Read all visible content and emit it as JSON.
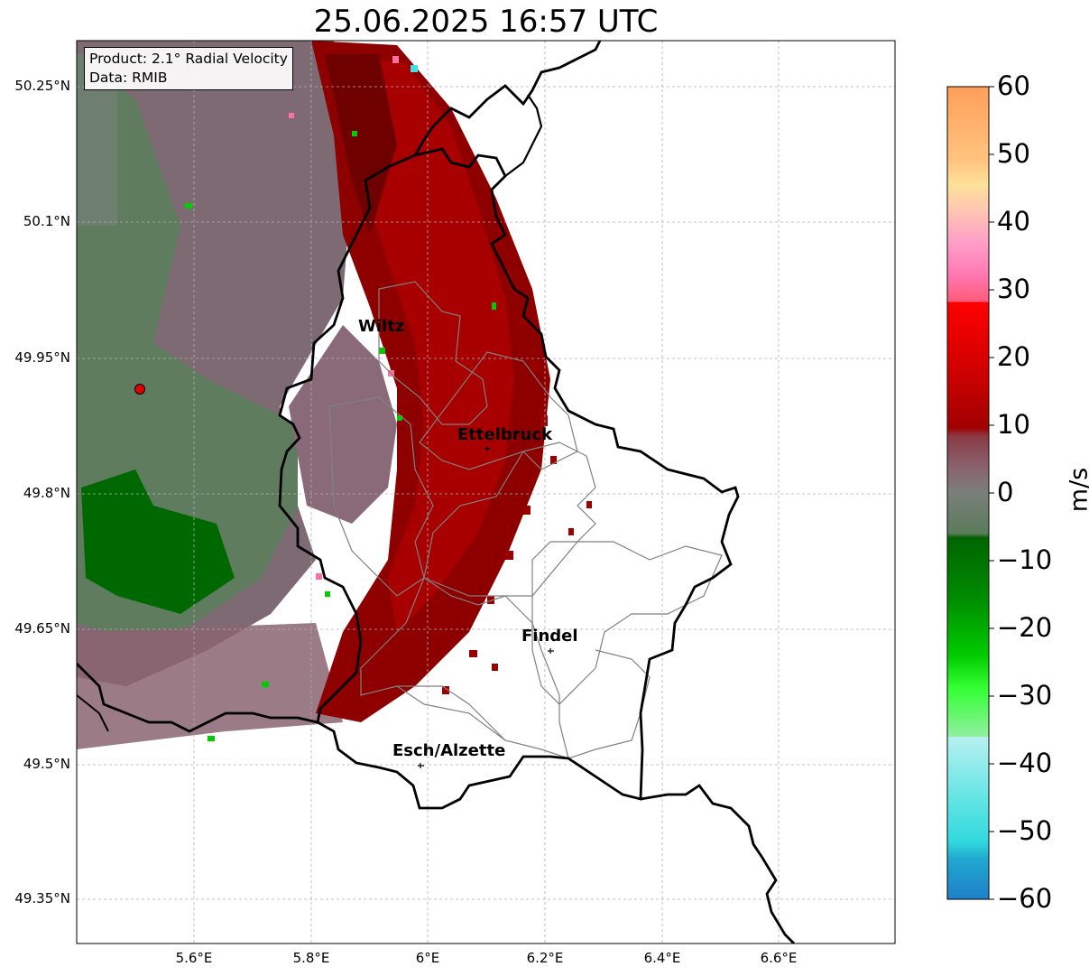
{
  "title": "25.06.2025 16:57 UTC",
  "info_box": {
    "product": "Product: 2.1° Radial Velocity",
    "data": "Data: RMIB"
  },
  "map": {
    "lon_range": [
      5.4,
      6.8
    ],
    "lat_range": [
      49.3,
      50.3
    ],
    "y_ticks": [
      "50.25°N",
      "50.1°N",
      "49.95°N",
      "49.8°N",
      "49.65°N",
      "49.5°N",
      "49.35°N"
    ],
    "x_ticks": [
      "5.6°E",
      "5.8°E",
      "6°E",
      "6.2°E",
      "6.4°E",
      "6.6°E"
    ],
    "cities": [
      {
        "name": "Wiltz",
        "lon": 5.93,
        "lat": 49.97
      },
      {
        "name": "Ettelbruck",
        "lon": 6.1,
        "lat": 49.85
      },
      {
        "name": "Findel",
        "lon": 6.21,
        "lat": 49.63
      },
      {
        "name": "Esch/Alzette",
        "lon": 5.99,
        "lat": 49.5
      }
    ],
    "radar_site": {
      "lon": 5.51,
      "lat": 49.915,
      "color": "#e00000"
    }
  },
  "colorbar": {
    "label": "m/s",
    "ticks": [
      "60",
      "50",
      "40",
      "30",
      "20",
      "10",
      "0",
      "−10",
      "−20",
      "−30",
      "−40",
      "−50",
      "−60"
    ],
    "range": [
      -60,
      60
    ]
  }
}
